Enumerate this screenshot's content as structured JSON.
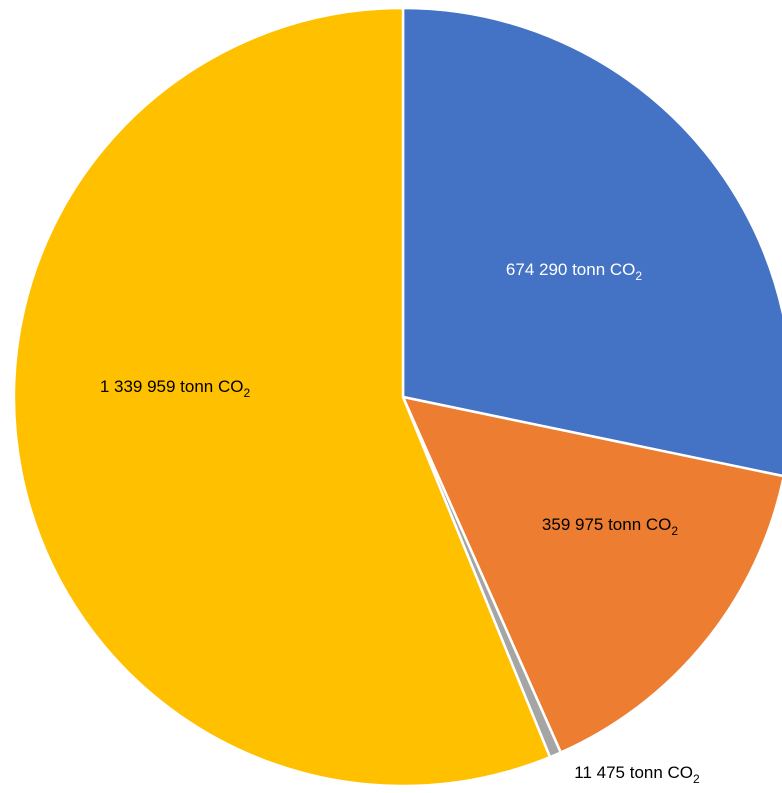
{
  "chart_data": {
    "type": "pie",
    "start_angle_deg": 0,
    "direction": "clockwise",
    "slices": [
      {
        "value": 674290,
        "label": "674 290 tonn CO",
        "label_sub": "2",
        "color": "#4472C4",
        "label_color": "#ffffff"
      },
      {
        "value": 359975,
        "label": "359 975 tonn CO",
        "label_sub": "2",
        "color": "#ED7D31",
        "label_color": "#000000"
      },
      {
        "value": 11475,
        "label": "11 475 tonn CO",
        "label_sub": "2",
        "color": "#A5A5A5",
        "label_color": "#000000"
      },
      {
        "value": 1339959,
        "label": "1 339 959 tonn CO",
        "label_sub": "2",
        "color": "#FFC000",
        "label_color": "#000000"
      }
    ]
  }
}
